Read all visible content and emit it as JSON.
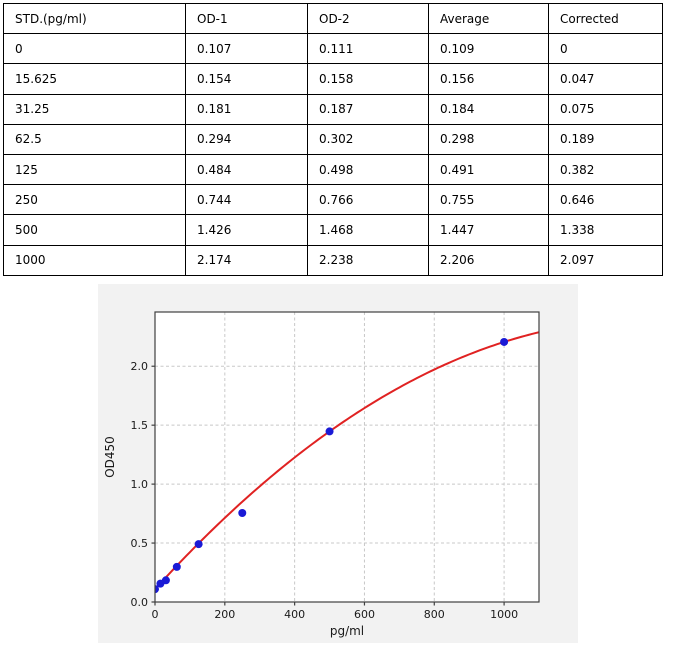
{
  "table": {
    "headers": [
      "STD.(pg/ml)",
      "OD-1",
      "OD-2",
      "Average",
      "Corrected"
    ],
    "rows": [
      [
        "0",
        "0.107",
        "0.111",
        "0.109",
        "0"
      ],
      [
        "15.625",
        "0.154",
        "0.158",
        "0.156",
        "0.047"
      ],
      [
        "31.25",
        "0.181",
        "0.187",
        "0.184",
        "0.075"
      ],
      [
        "62.5",
        "0.294",
        "0.302",
        "0.298",
        "0.189"
      ],
      [
        "125",
        "0.484",
        "0.498",
        "0.491",
        "0.382"
      ],
      [
        "250",
        "0.744",
        "0.766",
        "0.755",
        "0.646"
      ],
      [
        "500",
        "1.426",
        "1.468",
        "1.447",
        "1.338"
      ],
      [
        "1000",
        "2.174",
        "2.238",
        "2.206",
        "2.097"
      ]
    ]
  },
  "chart_data": {
    "type": "scatter",
    "title": "",
    "xlabel": "pg/ml",
    "ylabel": "OD450",
    "x": [
      0,
      15.625,
      31.25,
      62.5,
      125,
      250,
      500,
      1000
    ],
    "y": [
      0.109,
      0.156,
      0.184,
      0.298,
      0.491,
      0.755,
      1.447,
      2.206
    ],
    "xlim": [
      0,
      1100
    ],
    "ylim": [
      0,
      2.46
    ],
    "x_ticks": [
      0,
      200,
      400,
      600,
      800,
      1000
    ],
    "y_ticks": [
      0.0,
      0.5,
      1.0,
      1.5,
      2.0
    ],
    "grid": true,
    "grid_style": "dashed",
    "legend_position": "none",
    "fit_curve": {
      "type": "quadratic",
      "coefficients": [
        0.109,
        0.003255,
        -1.158e-06
      ],
      "x_range": [
        0,
        1100
      ]
    },
    "colors": {
      "point": "#1a1ad6",
      "curve": "#e02222",
      "figure_bg": "#f2f2f2",
      "plot_bg": "#ffffff",
      "grid": "#c8c8c8",
      "spine": "#404040",
      "text": "#1a1a1a"
    }
  }
}
